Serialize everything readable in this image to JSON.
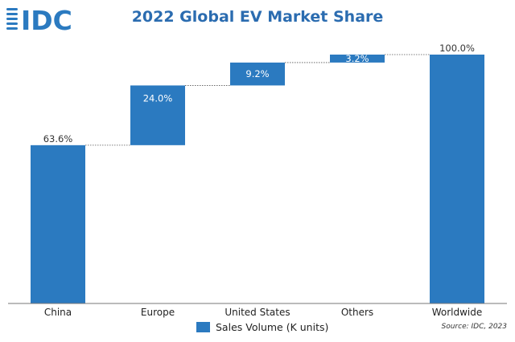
{
  "logo": {
    "text": "IDC",
    "color": "#2b7ac0"
  },
  "colors": {
    "bar": "#2b7ac0",
    "title": "#2b6cb0",
    "axis": "#777777",
    "connector": "#555555"
  },
  "chart_data": {
    "type": "waterfall",
    "title": "2022 Global EV Market Share",
    "categories": [
      "China",
      "Europe",
      "United States",
      "Others",
      "Worldwide"
    ],
    "series": [
      {
        "name": "Sales Volume (K units)",
        "values": [
          63.6,
          24.0,
          9.2,
          3.2,
          100.0
        ],
        "labels": [
          "63.6%",
          "24.0%",
          "9.2%",
          "3.2%",
          "100.0%"
        ],
        "total": [
          true,
          false,
          false,
          false,
          true
        ]
      }
    ],
    "ylim": [
      0,
      100
    ],
    "grid": false,
    "legend": "bottom",
    "source": "Source: IDC, 2023"
  }
}
